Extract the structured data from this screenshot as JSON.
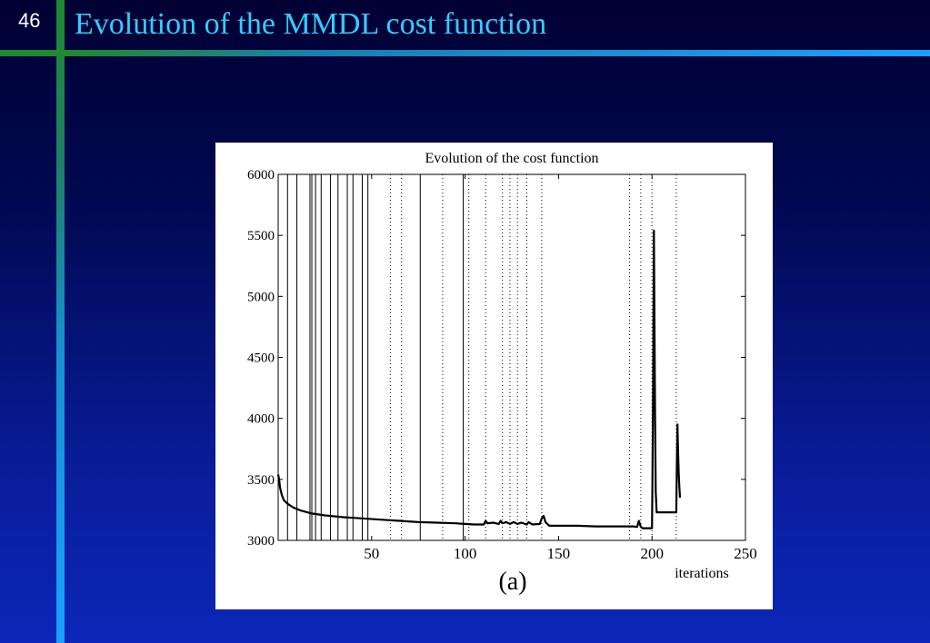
{
  "slide": {
    "number": "46",
    "title": "Evolution of the MMDL cost function"
  },
  "figure": {
    "caption": "(a)"
  },
  "colors": {
    "title": "#33ccff",
    "accent_green": "#1f8a2e",
    "accent_blue": "#1aa0ff",
    "background": "#0a1d9c"
  },
  "chart_data": {
    "type": "line",
    "title": "Evolution of the cost function",
    "xlabel": "iterations",
    "ylabel": "",
    "xlim": [
      0,
      250
    ],
    "ylim": [
      3000,
      6000
    ],
    "xticks": [
      50,
      100,
      150,
      200,
      250
    ],
    "yticks": [
      3000,
      3500,
      4000,
      4500,
      5000,
      5500,
      6000
    ],
    "grid": false,
    "solid_vlines": [
      5,
      10,
      17,
      18,
      20,
      23,
      28,
      32,
      37,
      40,
      45,
      48,
      76,
      99
    ],
    "dotted_vlines": [
      60,
      66,
      88,
      102,
      111,
      120,
      124,
      128,
      133,
      141,
      188,
      194,
      200,
      213
    ],
    "series": [
      {
        "x": [
          0,
          0.5,
          1,
          2,
          3,
          5,
          8,
          12,
          18,
          25,
          35,
          45,
          55,
          65,
          75,
          85,
          95,
          100,
          105,
          110,
          111,
          112,
          115,
          118,
          119,
          120,
          122,
          124,
          126,
          128,
          130,
          133,
          134,
          136,
          140,
          141,
          142,
          143,
          145,
          150,
          160,
          170,
          180,
          190,
          192,
          193,
          194,
          195,
          196,
          197,
          198,
          199,
          200,
          200.3,
          200.6,
          201,
          201.3,
          201.6,
          202,
          202.5,
          203,
          205,
          210,
          213,
          213.3,
          213.6,
          214,
          214.3,
          214.6,
          215
        ],
        "y": [
          3540,
          3500,
          3430,
          3370,
          3330,
          3300,
          3270,
          3245,
          3220,
          3205,
          3190,
          3180,
          3170,
          3160,
          3150,
          3145,
          3140,
          3135,
          3130,
          3130,
          3160,
          3140,
          3145,
          3135,
          3160,
          3140,
          3150,
          3135,
          3150,
          3135,
          3145,
          3130,
          3150,
          3130,
          3135,
          3180,
          3200,
          3150,
          3120,
          3120,
          3120,
          3115,
          3115,
          3115,
          3110,
          3160,
          3110,
          3100,
          3100,
          3100,
          3100,
          3100,
          3100,
          3580,
          4200,
          5540,
          4800,
          4100,
          3400,
          3230,
          3230,
          3230,
          3230,
          3230,
          3600,
          3950,
          3700,
          3550,
          3450,
          3350
        ]
      }
    ]
  }
}
